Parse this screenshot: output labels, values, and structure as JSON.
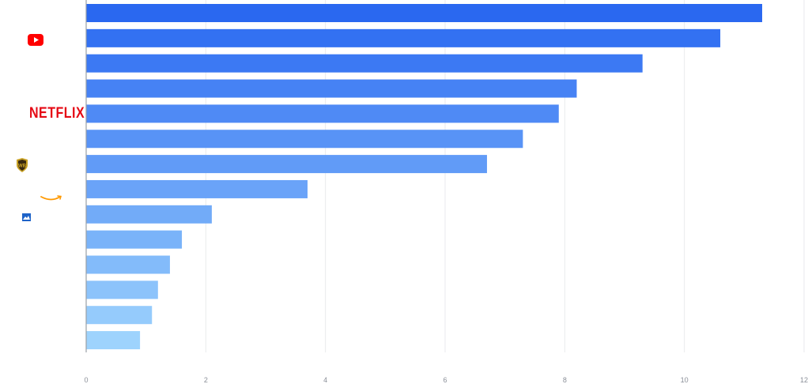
{
  "chart_data": {
    "type": "bar",
    "orientation": "horizontal",
    "title": "",
    "xlabel": "",
    "ylabel": "",
    "xlim": [
      0,
      12
    ],
    "x_ticks": [
      0,
      2,
      4,
      6,
      8,
      10,
      12
    ],
    "grid": true,
    "legend": "none",
    "values": [
      11.3,
      10.6,
      9.3,
      8.2,
      7.9,
      7.3,
      6.7,
      3.7,
      2.1,
      1.6,
      1.4,
      1.2,
      1.1,
      0.9
    ],
    "bar_colors": [
      "#2a68f0",
      "#3371f2",
      "#3c79f3",
      "#4682f4",
      "#4f8af5",
      "#5893f6",
      "#619bf7",
      "#6aa3f8",
      "#72abf8",
      "#7ab3f9",
      "#83bbfa",
      "#8cc3fb",
      "#95cbfc",
      "#9ed3fd"
    ],
    "category_logos": [
      "youtube-logo",
      "",
      "",
      "netflix-logo",
      "",
      "warner-bros-logo",
      "",
      "amazon-logo",
      "paramount-logo",
      "",
      "",
      "",
      "",
      ""
    ]
  },
  "logos": {
    "netflix_text": "NETFLIX",
    "youtube_color": "#ff0000",
    "netflix_color": "#e50914",
    "warner_color": "#c9a227",
    "amazon_color": "#ff9900",
    "paramount_color": "#1e63c8"
  }
}
